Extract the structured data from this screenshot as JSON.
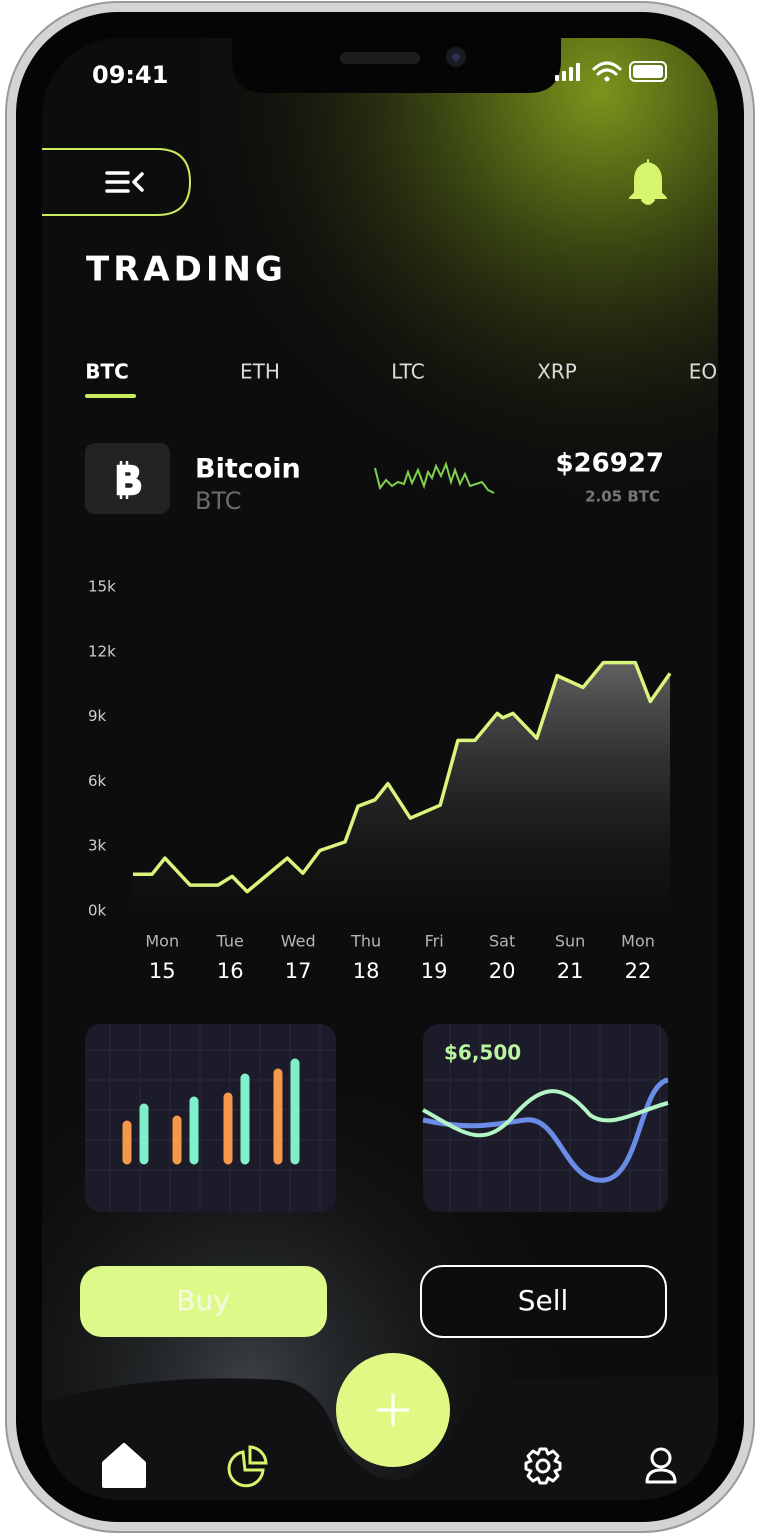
{
  "status": {
    "time": "09:41"
  },
  "header": {
    "title": "TRADING"
  },
  "tabs": [
    "BTC",
    "ETH",
    "LTC",
    "XRP",
    "EO"
  ],
  "coin": {
    "name": "Bitcoin",
    "symbol": "BTC",
    "price": "$26927",
    "holding": "2.05 BTC"
  },
  "chart_data": {
    "type": "line",
    "color": "#d9f57b",
    "x": [
      14.57,
      14.85,
      15.04,
      15.41,
      15.82,
      16.03,
      16.25,
      16.84,
      17.07,
      17.32,
      17.69,
      17.88,
      18.13,
      18.32,
      18.65,
      19.09,
      19.35,
      19.6,
      19.93,
      20.01,
      20.16,
      20.51,
      20.81,
      21.19,
      21.49,
      21.96,
      22.18,
      22.47
    ],
    "values": [
      1700,
      1700,
      2450,
      1200,
      1200,
      1600,
      900,
      2450,
      1750,
      2800,
      3200,
      4850,
      5150,
      5900,
      4300,
      4900,
      7900,
      7900,
      9150,
      8950,
      9150,
      8000,
      10900,
      10350,
      11500,
      11500,
      9700,
      11000
    ],
    "xlim": [
      14.57,
      22.47
    ],
    "xticks": [
      15,
      16,
      17,
      18,
      19,
      20,
      21,
      22
    ],
    "weekdays": [
      "Mon",
      "Tue",
      "Wed",
      "Thu",
      "Fri",
      "Sat",
      "Sun",
      "Mon"
    ],
    "ylim": [
      0,
      15000
    ],
    "yticks": [
      {
        "value": 0,
        "label": "0k"
      },
      {
        "value": 3000,
        "label": "3k"
      },
      {
        "value": 6000,
        "label": "6k"
      },
      {
        "value": 9000,
        "label": "9k"
      },
      {
        "value": 12000,
        "label": "12k"
      },
      {
        "value": 15000,
        "label": "15k"
      }
    ]
  },
  "cards": {
    "wave_label": "$6,500"
  },
  "actions": {
    "buy": "Buy",
    "sell": "Sell"
  }
}
